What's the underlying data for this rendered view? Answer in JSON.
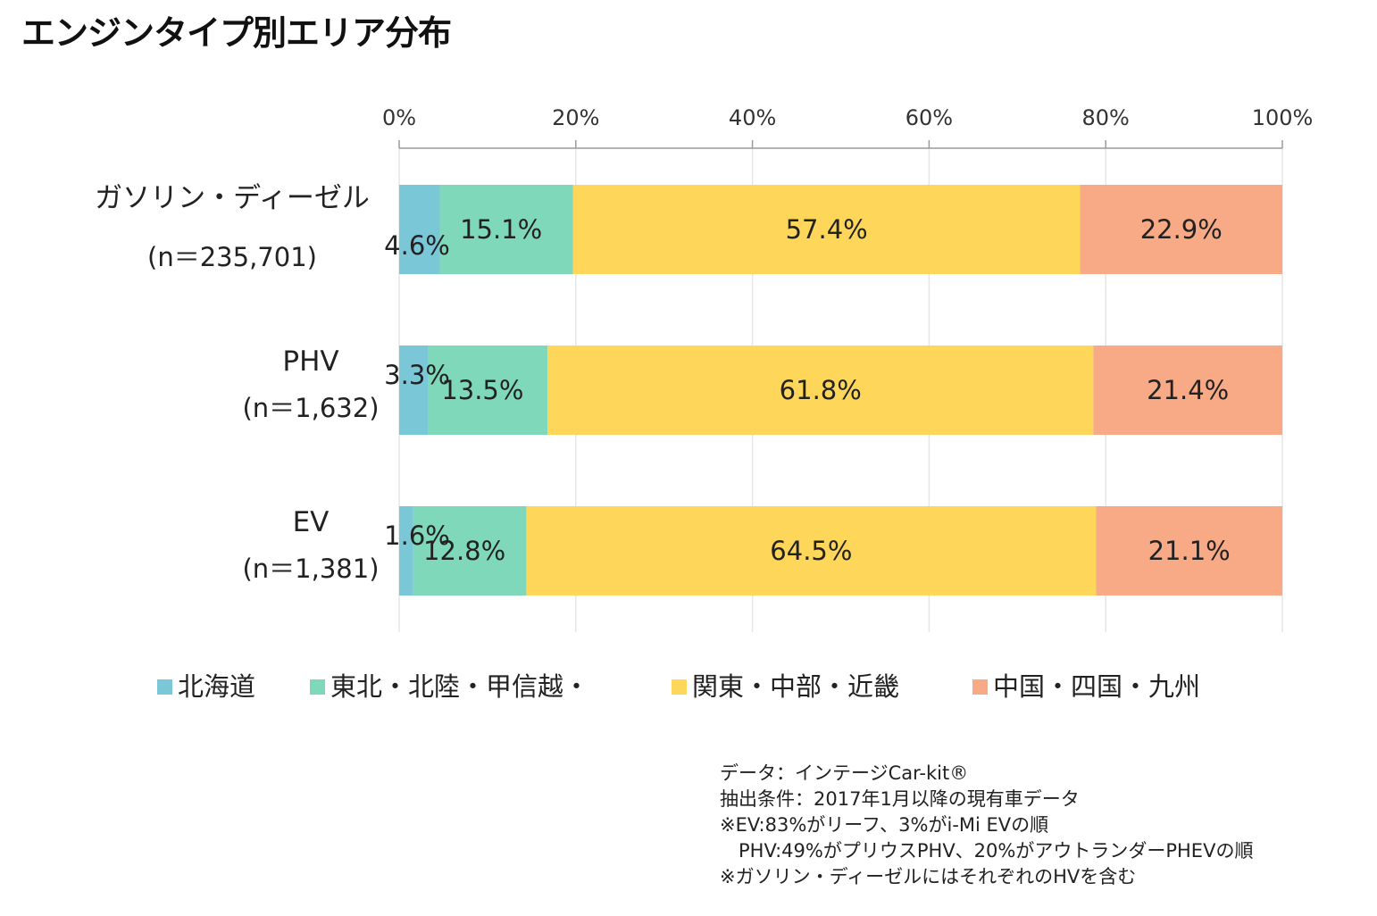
{
  "title": "エンジンタイプ別エリア分布",
  "chart_data": {
    "type": "bar",
    "orientation": "horizontal",
    "stacked": "percent",
    "xlim": [
      0,
      100
    ],
    "x_ticks": [
      "0%",
      "20%",
      "40%",
      "60%",
      "80%",
      "100%"
    ],
    "grid": true,
    "legend_position": "bottom",
    "categories": [
      {
        "name": "ガソリン・ディーゼル",
        "n": "(n＝235,701)"
      },
      {
        "name": "PHV",
        "n": "(n＝1,632)"
      },
      {
        "name": "EV",
        "n": "(n＝1,381)"
      }
    ],
    "series": [
      {
        "name": "北海道",
        "color": "#7ac7d8",
        "values": [
          4.6,
          3.3,
          1.6
        ],
        "labels": [
          "4.6%",
          "3.3%",
          "1.6%"
        ]
      },
      {
        "name": "東北・北陸・甲信越・",
        "color": "#80d8bb",
        "values": [
          15.1,
          13.5,
          12.8
        ],
        "labels": [
          "15.1%",
          "13.5%",
          "12.8%"
        ]
      },
      {
        "name": "関東・中部・近畿",
        "color": "#fdd65a",
        "values": [
          57.4,
          61.8,
          64.5
        ],
        "labels": [
          "57.4%",
          "61.8%",
          "64.5%"
        ]
      },
      {
        "name": "中国・四国・九州",
        "color": "#f8a985",
        "values": [
          22.9,
          21.4,
          21.1
        ],
        "labels": [
          "22.9%",
          "21.4%",
          "21.1%"
        ]
      }
    ]
  },
  "notes": [
    "データ：インテージCar-kit®",
    "抽出条件：2017年1月以降の現有車データ",
    "※EV:83%がリーフ、3%がi-Mi EVの順",
    "　PHV:49%がプリウスPHV、20%がアウトランダーPHEVの順",
    "※ガソリン・ディーゼルにはそれぞれのHVを含む"
  ]
}
